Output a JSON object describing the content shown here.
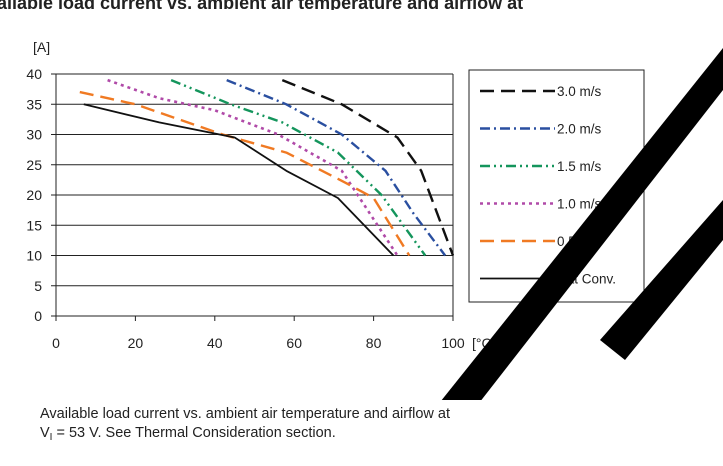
{
  "header_fragment": "ailable load current vs. ambient air temperature and airflow at",
  "chart_data": {
    "type": "line",
    "title": "",
    "xlabel": "[°C]",
    "ylabel": "[A]",
    "xlim": [
      0,
      100
    ],
    "ylim": [
      0,
      40
    ],
    "xticks": [
      0,
      20,
      40,
      60,
      80,
      100
    ],
    "yticks": [
      0,
      5,
      10,
      15,
      20,
      25,
      30,
      35,
      40
    ],
    "grid": "horizontal",
    "legend_position": "right",
    "series": [
      {
        "name": "3.0 m/s",
        "color": "#111111",
        "dash": "14,7",
        "width": 2.4,
        "x": [
          57,
          72,
          86,
          92,
          100
        ],
        "y": [
          39,
          35,
          29.5,
          24,
          10
        ]
      },
      {
        "name": "2.0 m/s",
        "color": "#2a4fa0",
        "dash": "10,4,2,4",
        "width": 2.4,
        "x": [
          43,
          58,
          72,
          83,
          90,
          98
        ],
        "y": [
          39,
          35,
          30,
          24,
          17,
          10
        ]
      },
      {
        "name": "1.5 m/s",
        "color": "#14955c",
        "dash": "10,4,2,4,2,4",
        "width": 2.4,
        "x": [
          29,
          44,
          57,
          71,
          82,
          93
        ],
        "y": [
          39,
          35,
          32,
          27,
          20,
          10
        ]
      },
      {
        "name": "1.0 m/s",
        "color": "#b04aa8",
        "dash": "3,4",
        "width": 2.6,
        "x": [
          13,
          26,
          40,
          56,
          72,
          86
        ],
        "y": [
          39,
          36,
          34,
          30,
          24,
          10
        ]
      },
      {
        "name": "0.5 m/s",
        "color": "#f07a23",
        "dash": "14,7",
        "width": 2.4,
        "x": [
          6,
          20,
          42,
          58,
          73,
          80,
          89
        ],
        "y": [
          37,
          35,
          30,
          27,
          22,
          19.5,
          10
        ]
      },
      {
        "name": "Nat Conv.",
        "color": "#111111",
        "dash": "",
        "width": 1.8,
        "x": [
          7,
          26,
          45,
          58,
          71,
          85
        ],
        "y": [
          35,
          32,
          29.5,
          24,
          19.5,
          10
        ]
      }
    ]
  },
  "caption": {
    "line1": "Available load current vs. ambient air temperature and airflow at",
    "line2_pre": "V",
    "line2_sub": "I",
    "line2_post": " = 53 V. See Thermal Consideration section."
  }
}
